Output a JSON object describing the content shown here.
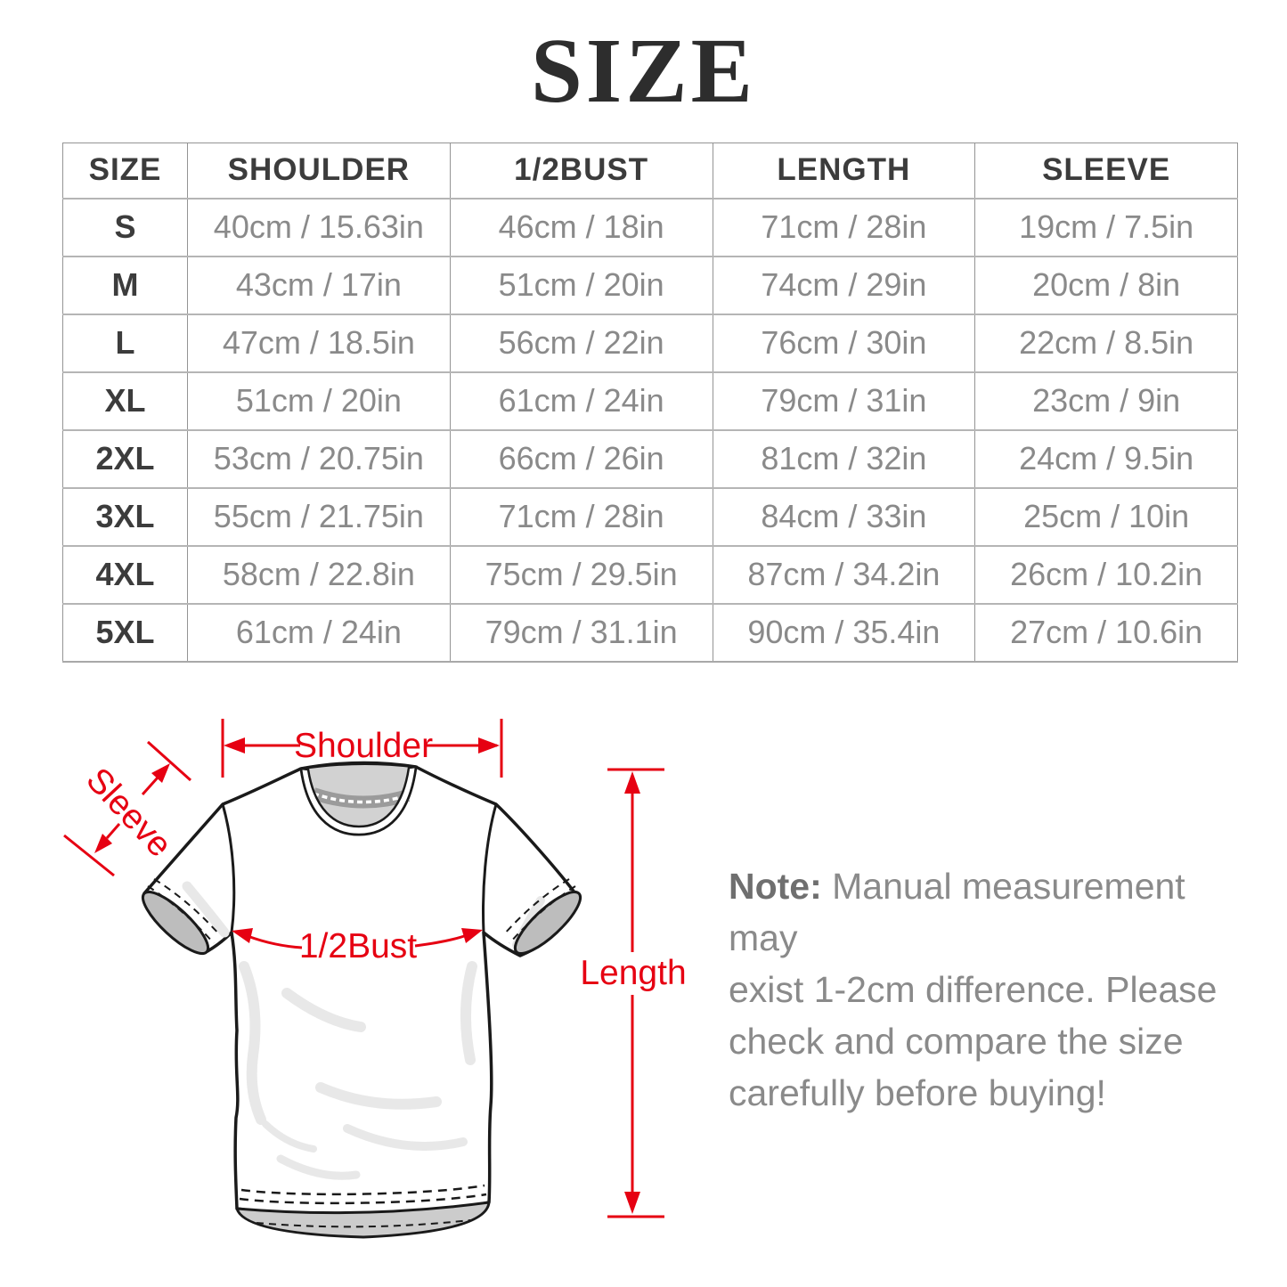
{
  "title": "SIZE",
  "accent_color": "#e60012",
  "table": {
    "columns": [
      "SIZE",
      "SHOULDER",
      "1/2BUST",
      "LENGTH",
      "SLEEVE"
    ],
    "rows": [
      [
        "S",
        "40cm / 15.63in",
        "46cm / 18in",
        "71cm / 28in",
        "19cm / 7.5in"
      ],
      [
        "M",
        "43cm / 17in",
        "51cm / 20in",
        "74cm / 29in",
        "20cm / 8in"
      ],
      [
        "L",
        "47cm / 18.5in",
        "56cm / 22in",
        "76cm / 30in",
        "22cm / 8.5in"
      ],
      [
        "XL",
        "51cm / 20in",
        "61cm / 24in",
        "79cm / 31in",
        "23cm / 9in"
      ],
      [
        "2XL",
        "53cm / 20.75in",
        "66cm / 26in",
        "81cm / 32in",
        "24cm / 9.5in"
      ],
      [
        "3XL",
        "55cm / 21.75in",
        "71cm / 28in",
        "84cm / 33in",
        "25cm / 10in"
      ],
      [
        "4XL",
        "58cm / 22.8in",
        "75cm / 29.5in",
        "87cm / 34.2in",
        "26cm / 10.2in"
      ],
      [
        "5XL",
        "61cm / 24in",
        "79cm / 31.1in",
        "90cm / 35.4in",
        "27cm / 10.6in"
      ]
    ]
  },
  "diagram": {
    "shoulder_label": "Shoulder",
    "sleeve_label": "Sleeve",
    "bust_label": "1/2Bust",
    "length_label": "Length"
  },
  "note": {
    "label": "Note:",
    "line1": " Manual measurement may",
    "line2": "exist 1-2cm difference. Please",
    "line3": "check and compare the size",
    "line4": "carefully before buying!"
  }
}
